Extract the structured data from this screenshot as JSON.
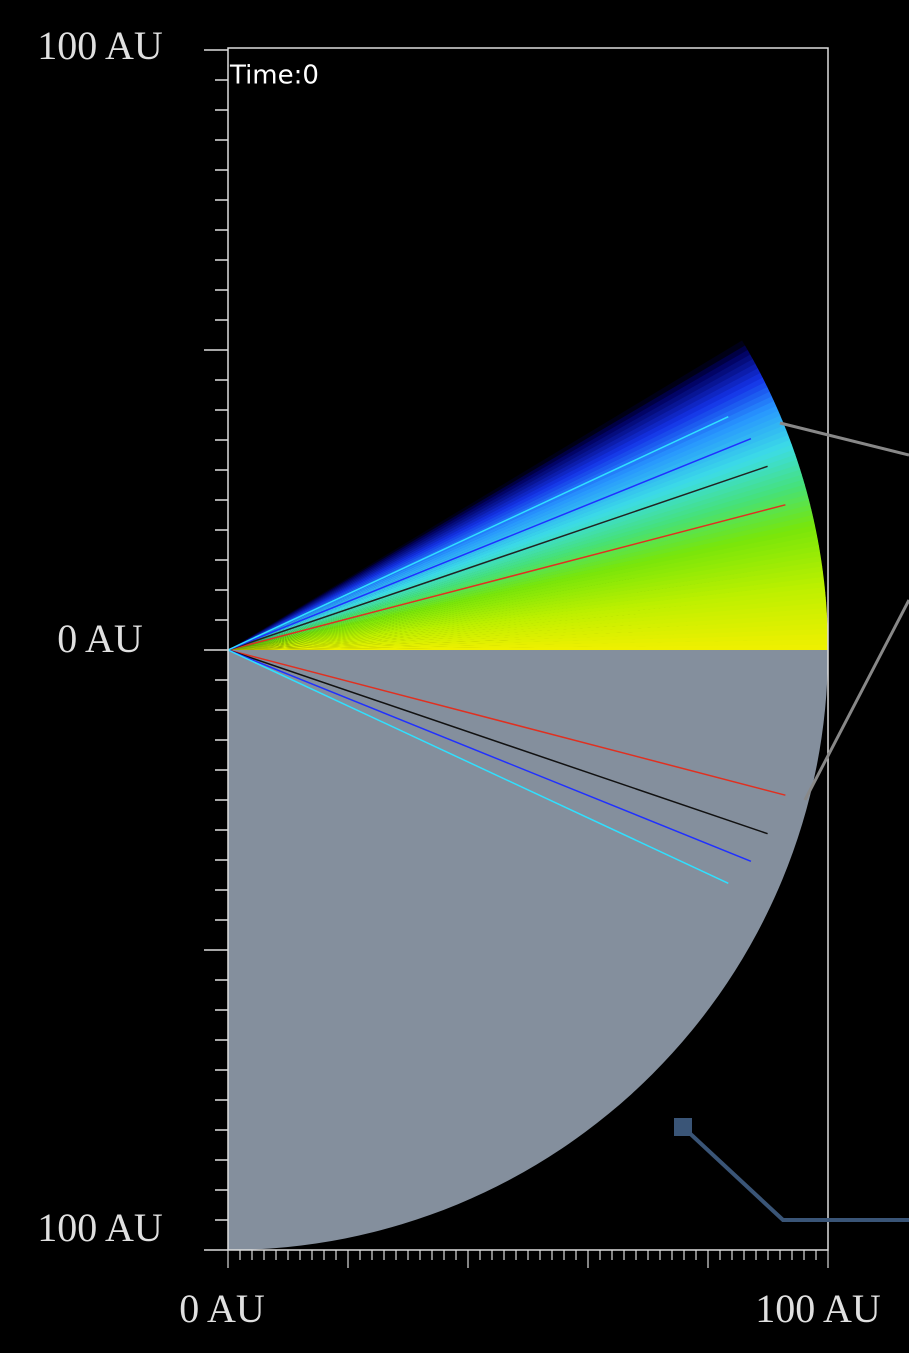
{
  "axis_labels": {
    "y_top": "100 AU",
    "y_mid": "0 AU",
    "y_bottom": "100 AU",
    "x_left": "0 AU",
    "x_right": "100 AU"
  },
  "time_label": "Time:0"
}
